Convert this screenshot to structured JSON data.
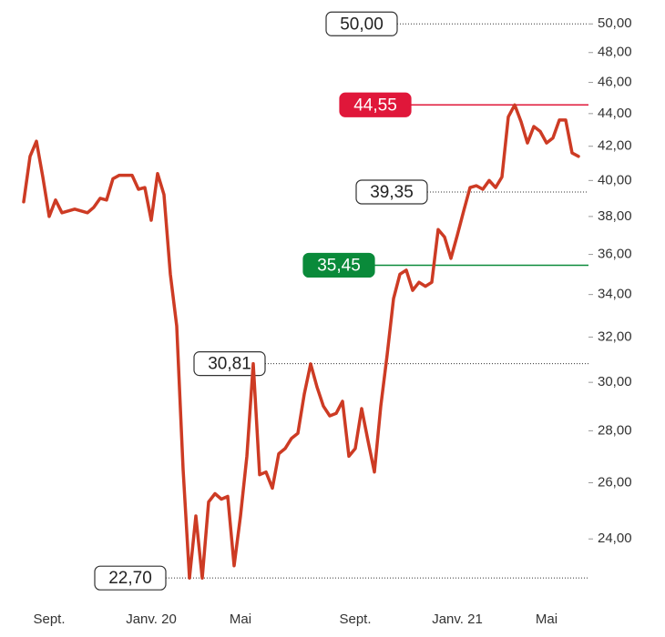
{
  "chart_data": {
    "type": "line",
    "log_scale": true,
    "categories": [
      null,
      null,
      null,
      null,
      "Sept.",
      null,
      null,
      null,
      null,
      null,
      null,
      null,
      null,
      null,
      null,
      null,
      null,
      null,
      null,
      null,
      "Janv. 20",
      null,
      null,
      null,
      null,
      null,
      null,
      null,
      null,
      null,
      null,
      null,
      null,
      null,
      "Mai",
      null,
      null,
      null,
      null,
      null,
      null,
      null,
      null,
      null,
      null,
      null,
      null,
      null,
      null,
      null,
      null,
      null,
      "Sept.",
      null,
      null,
      null,
      null,
      null,
      null,
      null,
      null,
      null,
      null,
      null,
      null,
      null,
      null,
      null,
      "Janv. 21",
      null,
      null,
      null,
      null,
      null,
      null,
      null,
      null,
      null,
      null,
      null,
      null,
      null,
      "Mai",
      null,
      null,
      null,
      null,
      null
    ],
    "series": [
      {
        "color": "#cd3b24",
        "values": [
          38.8,
          41.4,
          42.3,
          40.2,
          38.0,
          38.9,
          38.2,
          38.3,
          38.4,
          38.3,
          38.2,
          38.5,
          39.0,
          38.9,
          40.1,
          40.3,
          40.3,
          40.3,
          39.5,
          39.6,
          37.8,
          40.4,
          39.2,
          35.0,
          32.5,
          26.5,
          22.7,
          24.8,
          22.7,
          25.3,
          25.6,
          25.4,
          25.5,
          23.1,
          24.8,
          27.0,
          30.81,
          26.3,
          26.4,
          25.8,
          27.1,
          27.3,
          27.7,
          27.9,
          29.5,
          30.8,
          29.8,
          29.0,
          28.6,
          28.7,
          29.2,
          27.0,
          27.3,
          28.9,
          27.6,
          26.4,
          29.0,
          31.2,
          33.8,
          35.0,
          35.2,
          34.2,
          34.6,
          34.4,
          34.6,
          37.3,
          36.9,
          35.8,
          37.0,
          38.3,
          39.6,
          39.7,
          39.5,
          40.0,
          39.6,
          40.2,
          43.8,
          44.55,
          43.5,
          42.2,
          43.2,
          42.9,
          42.2,
          42.5,
          43.6,
          43.6,
          41.6,
          41.4
        ]
      }
    ],
    "ylim": [
      22.5,
      51
    ],
    "yticks": [
      {
        "value": 24,
        "label": "24,00"
      },
      {
        "value": 26,
        "label": "26,00"
      },
      {
        "value": 28,
        "label": "28,00"
      },
      {
        "value": 30,
        "label": "30,00"
      },
      {
        "value": 32,
        "label": "32,00"
      },
      {
        "value": 34,
        "label": "34,00"
      },
      {
        "value": 36,
        "label": "36,00"
      },
      {
        "value": 38,
        "label": "38,00"
      },
      {
        "value": 40,
        "label": "40,00"
      },
      {
        "value": 42,
        "label": "42,00"
      },
      {
        "value": 44,
        "label": "44,00"
      },
      {
        "value": 46,
        "label": "46,00"
      },
      {
        "value": 48,
        "label": "48,00"
      },
      {
        "value": 50,
        "label": "50,00"
      }
    ],
    "annotations": [
      {
        "value": 50,
        "label": "50,00",
        "style": "dotted"
      },
      {
        "value": 44.55,
        "label": "44,55",
        "style": "solid",
        "color": "#e0173a"
      },
      {
        "value": 39.35,
        "label": "39,35",
        "style": "dotted"
      },
      {
        "value": 35.45,
        "label": "35,45",
        "style": "solid",
        "color": "#0a8a3a"
      },
      {
        "value": 30.81,
        "label": "30,81",
        "style": "dotted"
      },
      {
        "value": 22.7,
        "label": "22,70",
        "style": "dotted"
      }
    ]
  }
}
